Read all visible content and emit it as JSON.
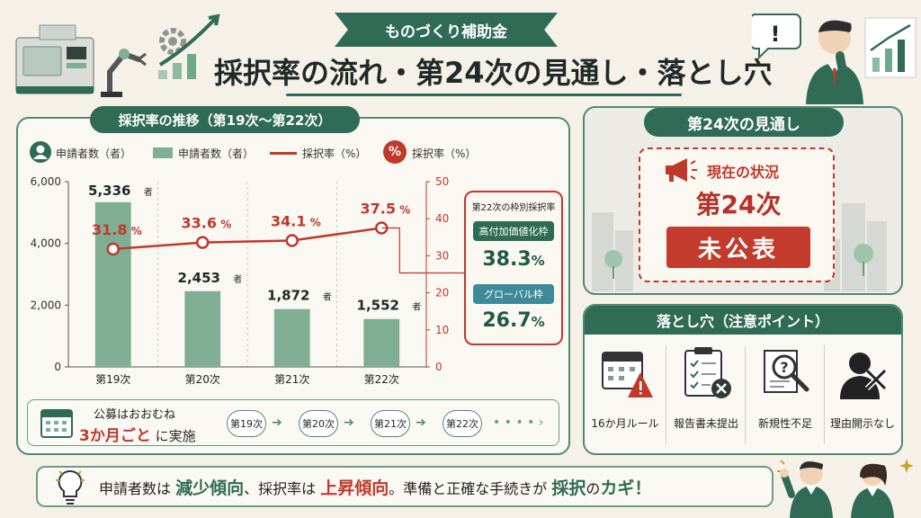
{
  "header": {
    "ribbon": "ものづくり補助金",
    "title": "採択率の流れ・第24次の見通し・落とし穴"
  },
  "chart_panel": {
    "tag": "採択率の推移（第19次〜第22次）",
    "legend_left_icon_label": "申請者数（者）",
    "legend_bar": "申請者数（者）",
    "legend_line": "採択率（%）",
    "legend_right_icon_label": "採択率（%）",
    "percent_symbol": "%"
  },
  "chart_data": {
    "type": "bar",
    "categories": [
      "第19次",
      "第20次",
      "第21次",
      "第22次"
    ],
    "series": [
      {
        "name": "申請者数（者）",
        "type": "bar",
        "axis": "left",
        "values": [
          5336,
          2453,
          1872,
          1552
        ],
        "labels": [
          "5,336",
          "2,453",
          "1,872",
          "1,552"
        ],
        "unit": "者"
      },
      {
        "name": "採択率（%）",
        "type": "line",
        "axis": "right",
        "values": [
          31.8,
          33.6,
          34.1,
          37.5
        ],
        "labels": [
          "31.8",
          "33.6",
          "34.1",
          "37.5"
        ],
        "unit": "%"
      }
    ],
    "y_left": {
      "range": [
        0,
        6000
      ],
      "ticks": [
        "0",
        "2,000",
        "4,000",
        "6,000"
      ],
      "tick_values": [
        0,
        2000,
        4000,
        6000
      ]
    },
    "y_right": {
      "range": [
        0,
        50
      ],
      "ticks": [
        "0",
        "10",
        "20",
        "30",
        "40",
        "50"
      ],
      "tick_values": [
        0,
        10,
        20,
        30,
        40,
        50
      ]
    },
    "grid": "vertical-dashed",
    "colors": {
      "bar": "#7fae94",
      "line": "#c0392b"
    }
  },
  "special_rates": {
    "heading": "第22次の枠別採択率",
    "items": [
      {
        "label": "高付加価値化枠",
        "value": "38.3",
        "unit": "%",
        "color": "#2f6b55"
      },
      {
        "label": "グローバル枠",
        "value": "26.7",
        "unit": "%",
        "color": "#3d8a9a"
      }
    ]
  },
  "schedule": {
    "line1": "公募はおおむね",
    "highlight": "3か月ごと",
    "line2_suffix": "に実施",
    "rounds": [
      "第19次",
      "第20次",
      "第21次",
      "第22次"
    ],
    "arrow": "➔",
    "trailing": "• • • • ›"
  },
  "outlook": {
    "tag": "第24次の見通し",
    "status_label": "現在の状況",
    "round": "第24次",
    "badge": "未公表"
  },
  "pitfalls": {
    "heading": "落とし穴（注意ポイント）",
    "items": [
      {
        "label": "16か月ルール",
        "icon": "calendar-warning-icon"
      },
      {
        "label": "報告書未提出",
        "icon": "clipboard-x-icon"
      },
      {
        "label": "新規性不足",
        "icon": "magnifier-question-icon"
      },
      {
        "label": "理由開示なし",
        "icon": "silhouette-x-icon"
      }
    ]
  },
  "footer": {
    "p1": "申請者数は",
    "h1": "減少傾向",
    "p2": "、採択率は",
    "h2": "上昇傾向",
    "p3": "。準備と正確な手続きが",
    "h3": "採択",
    "p4": "の",
    "h4": "カギ！"
  }
}
